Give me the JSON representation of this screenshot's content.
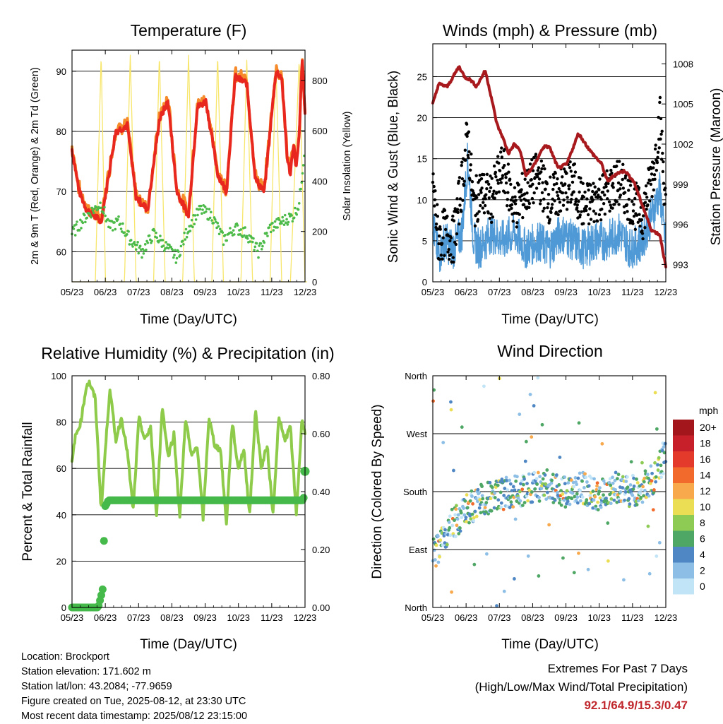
{
  "x_ticks": [
    "05/23",
    "06/23",
    "07/23",
    "08/23",
    "09/23",
    "10/23",
    "11/23",
    "12/23"
  ],
  "colors": {
    "temp2m": "#e8281f",
    "temp9m": "#f58b2a",
    "dewpoint": "#4cba48",
    "solar": "#f7e66b",
    "sonic": "#4f9ad6",
    "gust": "#000000",
    "pressure": "#a8191e",
    "rh": "#8fcb4a",
    "precip": "#45b94a"
  },
  "chart_data": [
    {
      "id": "temperature",
      "type": "line",
      "title": "Temperature (F)",
      "xlabel": "Time (Day/UTC)",
      "ylabel": "2m & 9m T (Red, Orange) & 2m Td (Green)",
      "y2label": "Solar Insolation (Yellow)",
      "ylim": [
        55,
        93.5
      ],
      "y_ticks": [
        60,
        70,
        80,
        90
      ],
      "y2lim": [
        0,
        920
      ],
      "y2_ticks": [
        0,
        200,
        400,
        600,
        800
      ],
      "grid": true,
      "series": [
        {
          "key": "temp2m",
          "x_days": [
            0,
            0.25,
            0.5,
            1,
            1.5,
            1.9,
            2.2,
            2.6,
            3,
            3.3,
            3.6,
            4,
            4.3,
            4.6,
            5,
            5.3,
            5.6,
            6,
            6.3,
            6.6,
            7,
            7.2,
            7.4,
            7.5,
            7.6,
            7.7,
            7.8,
            7.9,
            8
          ],
          "values": [
            77,
            70,
            67,
            65,
            80,
            81,
            69,
            67,
            82,
            85,
            70,
            66,
            84,
            85,
            73,
            70,
            89,
            88,
            72,
            70,
            90,
            89,
            75,
            73,
            78,
            74,
            79,
            92,
            83
          ]
        },
        {
          "key": "dewpoint",
          "x_days": [
            0,
            0.5,
            1,
            1.3,
            1.6,
            2,
            2.4,
            2.8,
            3.2,
            3.6,
            4,
            4.4,
            4.8,
            5.2,
            5.6,
            6,
            6.4,
            6.8,
            7.2,
            7.6,
            7.8,
            8
          ],
          "values": [
            63,
            66,
            68,
            64,
            65,
            62,
            60,
            63,
            61,
            59,
            64,
            67,
            66,
            62,
            64,
            63,
            60,
            64,
            65,
            66,
            68,
            78
          ]
        },
        {
          "key": "solar",
          "x_days": [
            0,
            0.5,
            0.8,
            1,
            1.15,
            1.3,
            1.5,
            1.8,
            2,
            2.2,
            2.3,
            2.5,
            2.8,
            3,
            3.2,
            3.3,
            3.5,
            3.8,
            4,
            4.2,
            4.3,
            4.5,
            4.8,
            5,
            5.2,
            5.3,
            5.5,
            5.8,
            6,
            6.2,
            6.3,
            6.5,
            6.8,
            7,
            7.2,
            7.3,
            7.5,
            7.8,
            8
          ],
          "values": [
            0,
            0,
            0,
            900,
            0,
            0,
            0,
            0,
            900,
            0,
            0,
            0,
            0,
            900,
            0,
            0,
            0,
            0,
            900,
            0,
            0,
            0,
            0,
            900,
            0,
            0,
            0,
            0,
            880,
            0,
            0,
            0,
            0,
            880,
            0,
            0,
            0,
            880,
            0
          ]
        }
      ]
    },
    {
      "id": "winds",
      "type": "line",
      "title": "Winds (mph) & Pressure (mb)",
      "xlabel": "Time (Day/UTC)",
      "ylabel": "Sonic Wind & Gust (Blue, Black)",
      "y2label": "Station Pressure (Maroon)",
      "ylim": [
        0,
        29
      ],
      "y_ticks": [
        0,
        5,
        10,
        15,
        20,
        25
      ],
      "y2lim": [
        991.7,
        1009.5
      ],
      "y2_ticks": [
        993,
        996,
        999,
        1002,
        1005,
        1008
      ],
      "grid": true,
      "series": [
        {
          "key": "pressure",
          "x_days": [
            0,
            0.2,
            0.5,
            0.9,
            1.1,
            1.3,
            1.5,
            1.8,
            2,
            2.2,
            2.4,
            2.6,
            2.8,
            3,
            3.2,
            3.5,
            3.8,
            4,
            4.3,
            4.6,
            5,
            5.4,
            5.8,
            6,
            6.3,
            6.6,
            6.9,
            7.2,
            7.5,
            7.8,
            8
          ],
          "values": [
            1005,
            1006.5,
            1006.3,
            1007.8,
            1007,
            1006.8,
            1006.3,
            1007.5,
            1005.6,
            1003.5,
            1002.5,
            1001.3,
            1002,
            1001.5,
            999.6,
            1000.5,
            1001.8,
            1001.8,
            1000.2,
            1000.5,
            1002.8,
            1001.5,
            1000.5,
            999.2,
            999.8,
            1000,
            999.2,
            997.4,
            995.6,
            995.2,
            992.8
          ]
        },
        {
          "key": "sonic",
          "x_days": [
            0,
            0.2,
            0.4,
            0.7,
            1,
            1.2,
            1.4,
            1.6,
            2,
            2.4,
            2.8,
            3.2,
            3.6,
            4,
            4.4,
            4.8,
            5.2,
            5.6,
            6,
            6.4,
            6.8,
            7.2,
            7.6,
            7.8,
            8
          ],
          "values": [
            7,
            3,
            5,
            4,
            6,
            15,
            5,
            4,
            6,
            5,
            6,
            4,
            5,
            4,
            6,
            5,
            4,
            5,
            5,
            6,
            4,
            5,
            9,
            11,
            4
          ]
        },
        {
          "key": "gust",
          "x_days": [
            0,
            0.2,
            0.4,
            0.7,
            1,
            1.2,
            1.4,
            1.6,
            2,
            2.4,
            2.8,
            3.2,
            3.6,
            4,
            4.4,
            4.8,
            5.2,
            5.6,
            6,
            6.4,
            6.8,
            7.2,
            7.6,
            7.8,
            8
          ],
          "values": [
            12,
            5,
            6,
            5,
            12,
            18,
            9,
            11,
            10,
            14,
            9,
            11,
            13,
            10,
            11,
            12,
            9,
            10,
            11,
            12,
            10,
            8,
            14,
            20,
            9
          ]
        }
      ]
    },
    {
      "id": "humidity",
      "type": "line",
      "title": "Relative Humidity (%) & Precipitation (in)",
      "xlabel": "Time (Day/UTC)",
      "ylabel": "Percent & Total Rainfall",
      "ylim": [
        0,
        100
      ],
      "y_ticks": [
        0,
        20,
        40,
        60,
        80,
        100
      ],
      "y2lim": [
        0,
        0.8
      ],
      "y2_ticks": [
        "0.00",
        "0.20",
        "0.40",
        "0.60",
        "0.80"
      ],
      "grid": true,
      "series": [
        {
          "key": "rh",
          "x_days": [
            0,
            0.1,
            0.3,
            0.5,
            0.6,
            0.8,
            1,
            1.1,
            1.3,
            1.5,
            1.7,
            1.9,
            2.1,
            2.3,
            2.5,
            2.7,
            2.9,
            3.1,
            3.3,
            3.5,
            3.7,
            3.9,
            4.1,
            4.3,
            4.5,
            4.7,
            4.9,
            5.1,
            5.3,
            5.5,
            5.7,
            5.9,
            6.1,
            6.3,
            6.5,
            6.7,
            6.9,
            7.1,
            7.3,
            7.5,
            7.7,
            7.9,
            8
          ],
          "values": [
            62,
            73,
            80,
            96,
            97,
            90,
            42,
            60,
            95,
            72,
            82,
            67,
            42,
            82,
            72,
            78,
            40,
            87,
            65,
            75,
            39,
            82,
            65,
            70,
            38,
            82,
            70,
            68,
            36,
            80,
            60,
            68,
            40,
            85,
            60,
            70,
            40,
            82,
            72,
            78,
            40,
            82,
            75
          ]
        },
        {
          "key": "precip",
          "type": "scatter",
          "x_days": [
            0,
            0.5,
            0.9,
            1.05,
            1.08,
            1.1,
            1.12,
            1.15,
            1.2,
            1.25,
            1.4,
            2,
            3,
            4,
            5,
            6,
            7,
            7.95,
            8
          ],
          "values": [
            0,
            0,
            0,
            0.06,
            0.11,
            0.25,
            0.35,
            0.35,
            0.36,
            0.37,
            0.37,
            0.37,
            0.37,
            0.37,
            0.37,
            0.37,
            0.37,
            0.37,
            0.47
          ]
        }
      ]
    },
    {
      "id": "wind_direction",
      "type": "scatter",
      "title": "Wind Direction",
      "xlabel": "Time (Day/UTC)",
      "ylabel": "Direction (Colored By Speed)",
      "ylim": [
        0,
        360
      ],
      "y_tick_labels": [
        "North",
        "East",
        "South",
        "West",
        "North"
      ],
      "legend_title": "mph",
      "legend_labels": [
        "20+",
        "18",
        "16",
        "14",
        "12",
        "10",
        "8",
        "6",
        "4",
        "2",
        "0"
      ],
      "legend_colors": [
        "#a3171c",
        "#c8202a",
        "#e33a2c",
        "#f26b2c",
        "#f7a94c",
        "#ebde55",
        "#8ecb55",
        "#4ea764",
        "#4f87c4",
        "#8dbfe6",
        "#c2e4f7"
      ],
      "legend_placement": "right",
      "grid": true
    }
  ],
  "info": {
    "location": "Location: Brockport",
    "elevation": "Station elevation: 171.602 m",
    "latlon": "Station lat/lon: 43.2084; -77.9659",
    "created": "Figure created on Tue, 2025-08-12, at 23:30 UTC",
    "recent": "Most recent data timestamp: 2025/08/12 23:15:00"
  },
  "extremes": {
    "title": "Extremes For Past 7 Days",
    "subtitle": "(High/Low/Max Wind/Total Precipitation)",
    "values": "92.1/64.9/15.3/0.47"
  }
}
